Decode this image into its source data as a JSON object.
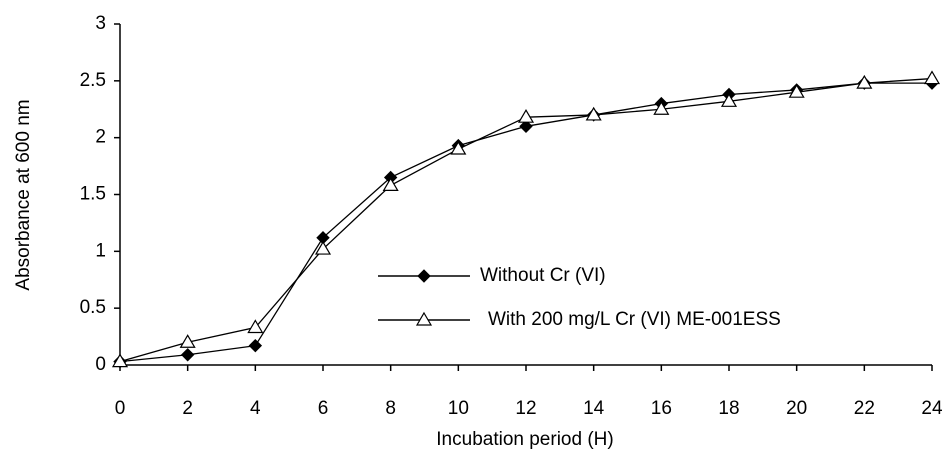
{
  "chart_data": {
    "type": "line",
    "x_label": "Incubation period (H)",
    "y_label": "Absorbance at 600 nm",
    "x": [
      0,
      2,
      4,
      6,
      8,
      10,
      12,
      14,
      16,
      18,
      20,
      22,
      24
    ],
    "series": [
      {
        "name": "Without Cr (VI)",
        "color": "#000000",
        "marker": "diamond",
        "values": [
          0.03,
          0.09,
          0.17,
          1.12,
          1.65,
          1.93,
          2.1,
          2.2,
          2.3,
          2.38,
          2.42,
          2.48,
          2.48
        ]
      },
      {
        "name": "With 200 mg/L Cr (VI) ME-001ESS",
        "color": "#000000",
        "marker": "triangle",
        "values": [
          0.03,
          0.2,
          0.33,
          1.02,
          1.58,
          1.9,
          2.18,
          2.2,
          2.25,
          2.32,
          2.4,
          2.48,
          2.52
        ]
      }
    ],
    "xlim": [
      0,
      24
    ],
    "xticks": [
      0,
      2,
      4,
      6,
      8,
      10,
      12,
      14,
      16,
      18,
      20,
      22,
      24
    ],
    "ylim": [
      0,
      3
    ],
    "yticks": [
      0,
      0.5,
      1,
      1.5,
      2,
      2.5,
      3
    ],
    "grid": false
  }
}
